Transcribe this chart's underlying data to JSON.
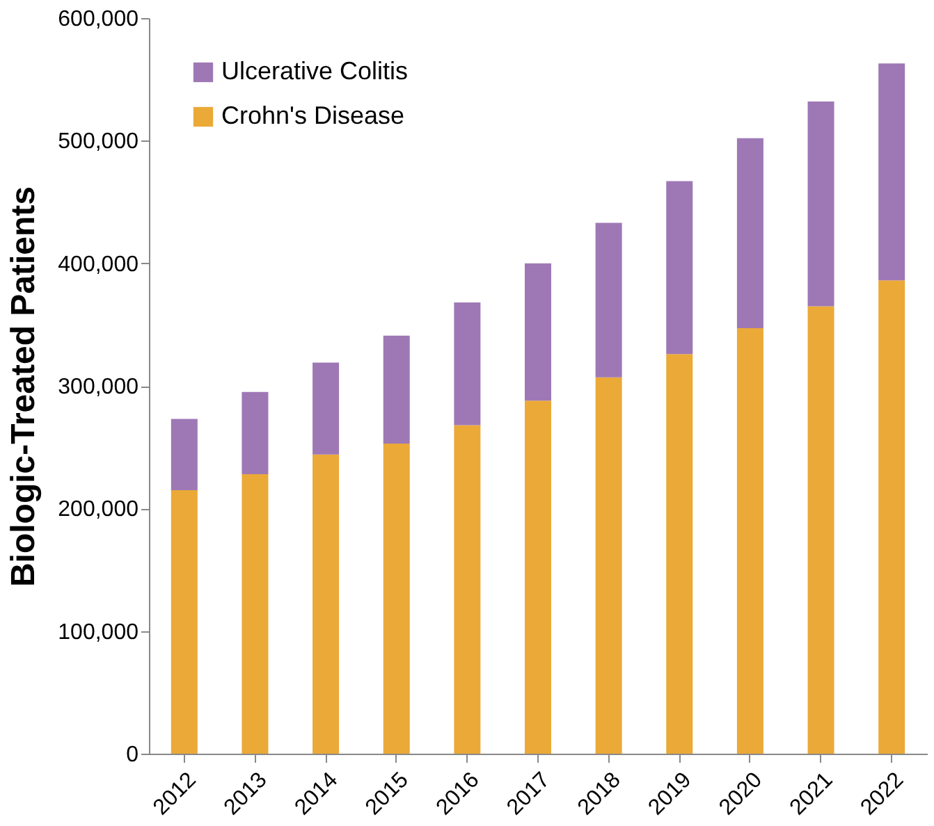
{
  "chart_data": {
    "type": "bar",
    "stacked": true,
    "ylabel": "Biologic-Treated Patients",
    "categories": [
      "2012",
      "2013",
      "2014",
      "2015",
      "2016",
      "2017",
      "2018",
      "2019",
      "2020",
      "2021",
      "2022"
    ],
    "series": [
      {
        "name": "Crohn's Disease",
        "color": "#eba937",
        "values": [
          215000,
          228000,
          244000,
          253000,
          268000,
          288000,
          307000,
          326000,
          347000,
          365000,
          386000
        ]
      },
      {
        "name": "Ulcerative Colitis",
        "color": "#9e78b5",
        "values": [
          58000,
          67000,
          75000,
          88000,
          100000,
          112000,
          126000,
          141000,
          155000,
          167000,
          177000
        ]
      }
    ],
    "ylim": [
      0,
      600000
    ],
    "yticks": [
      0,
      {
        "value": 100000,
        "label": "100,000"
      },
      {
        "value": 200000,
        "label": "200,000"
      },
      {
        "value": 300000,
        "label": "300,000"
      },
      {
        "value": 400000,
        "label": "400,000"
      },
      {
        "value": 500000,
        "label": "500,000"
      },
      {
        "value": 600000,
        "label": "600,000"
      }
    ],
    "grid": false,
    "legend": "top left"
  }
}
